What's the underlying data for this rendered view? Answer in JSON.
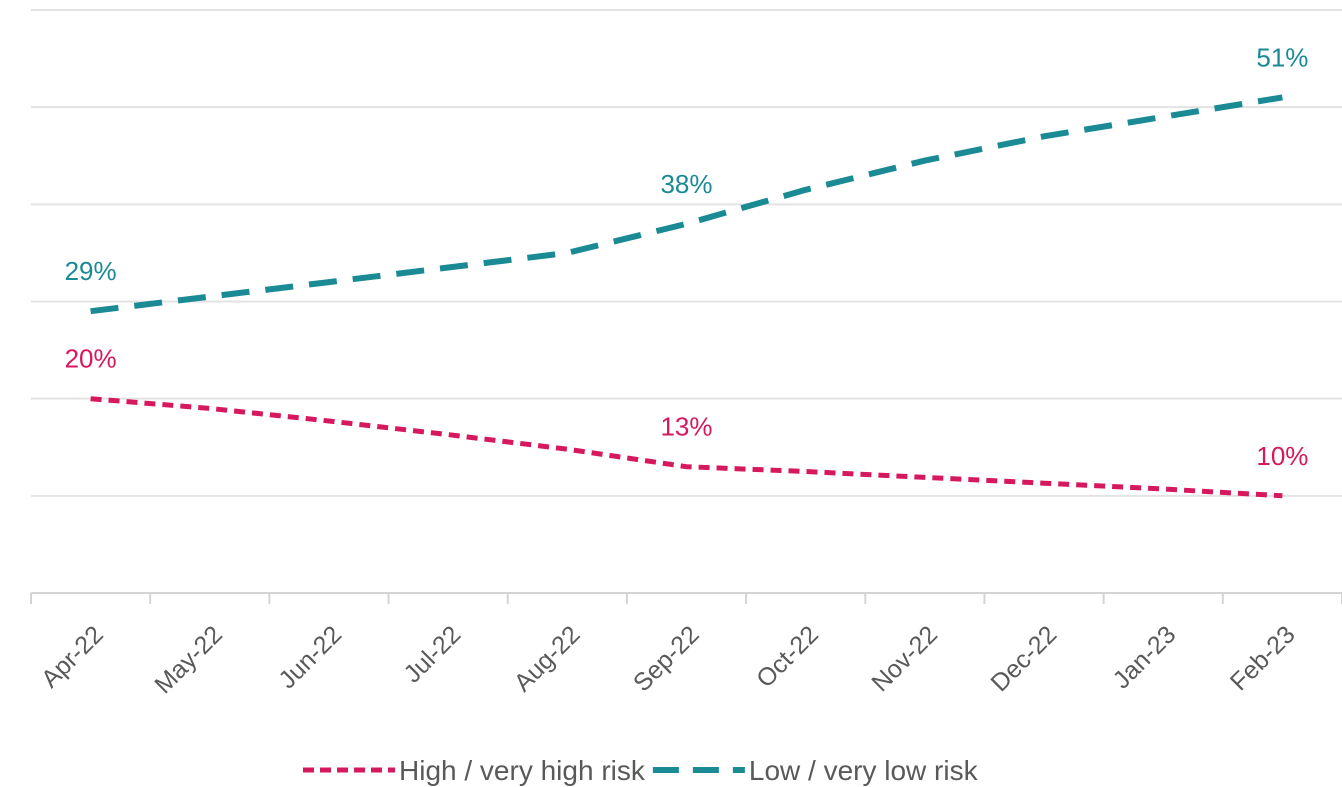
{
  "chart_data": {
    "type": "line",
    "categories": [
      "Apr-22",
      "May-22",
      "Jun-22",
      "Jul-22",
      "Aug-22",
      "Sep-22",
      "Oct-22",
      "Nov-22",
      "Dec-22",
      "Jan-23",
      "Feb-23"
    ],
    "series": [
      {
        "name": "High / very high risk",
        "color": "#d6185f",
        "dash": "short-dash",
        "values": [
          20,
          19,
          17.7,
          16.3,
          14.8,
          13,
          12.5,
          11.9,
          11.3,
          10.7,
          10
        ],
        "data_labels": [
          {
            "index": 0,
            "text": "20%"
          },
          {
            "index": 5,
            "text": "13%"
          },
          {
            "index": 10,
            "text": "10%"
          }
        ]
      },
      {
        "name": "Low / very low risk",
        "color": "#1a8a94",
        "dash": "long-dash",
        "values": [
          29,
          30.5,
          32,
          33.5,
          35,
          38,
          41.5,
          44.5,
          47,
          49,
          51
        ],
        "data_labels": [
          {
            "index": 0,
            "text": "29%"
          },
          {
            "index": 5,
            "text": "38%"
          },
          {
            "index": 10,
            "text": "51%"
          }
        ]
      }
    ],
    "ylim": [
      0,
      60
    ],
    "yticks_shown": false,
    "grid": true,
    "legend": "bottom"
  }
}
